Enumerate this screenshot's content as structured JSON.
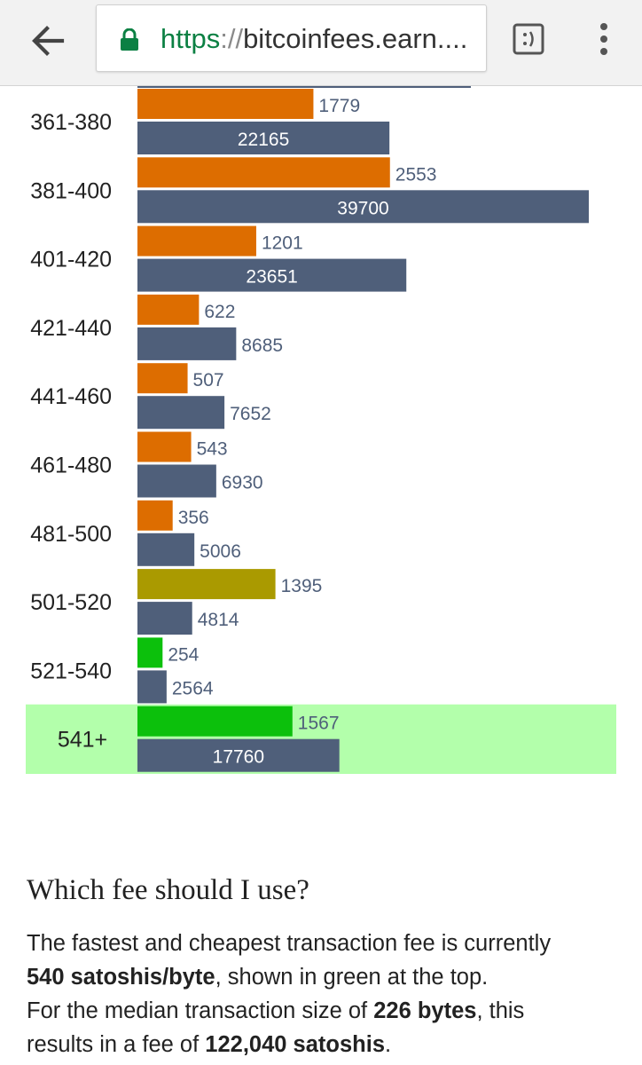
{
  "browser": {
    "url_scheme": "https",
    "url_separator": "://",
    "url_host": "bitcoinfees.earn....",
    "icons": [
      "back-arrow-icon",
      "lock-icon",
      "reader-mode-icon",
      "overflow-menu-icon"
    ]
  },
  "colors": {
    "tx_bar": "#4f5f7a",
    "highlight_row": "#b3ffab",
    "fee_bar_orange": "#dd6d00",
    "fee_bar_olive": "#aa9a00",
    "fee_bar_green": "#0cc00c"
  },
  "chart_data": {
    "type": "bar",
    "orientation": "horizontal",
    "categories": [
      "361-380",
      "381-400",
      "401-420",
      "421-440",
      "441-460",
      "461-480",
      "481-500",
      "501-520",
      "521-540",
      "541+"
    ],
    "series": [
      {
        "values": [
          1779,
          2553,
          1201,
          622,
          507,
          543,
          356,
          1395,
          254,
          1567
        ],
        "colors": [
          "#dd6d00",
          "#dd6d00",
          "#dd6d00",
          "#dd6d00",
          "#dd6d00",
          "#dd6d00",
          "#dd6d00",
          "#aa9a00",
          "#0cc00c",
          "#0cc00c"
        ]
      },
      {
        "values": [
          22165,
          39700,
          23651,
          8685,
          7652,
          6930,
          5006,
          4814,
          2564,
          17760
        ],
        "color": "#4f5f7a"
      }
    ],
    "highlighted_category": "541+",
    "xlim": [
      0,
      39700
    ],
    "grid": false
  },
  "section": {
    "heading": "Which fee should I use?",
    "line1_prefix": "The fastest and cheapest transaction fee is currently",
    "fee_rate": "540 satoshis/byte",
    "line2_suffix": ", shown in green at the top.",
    "line3_prefix": "For the median transaction size of",
    "median_size": "226 bytes",
    "line3_suffix": ", this",
    "line4_prefix": "results in a fee of",
    "total_fee": "122,040 satoshis",
    "line4_suffix": "."
  }
}
